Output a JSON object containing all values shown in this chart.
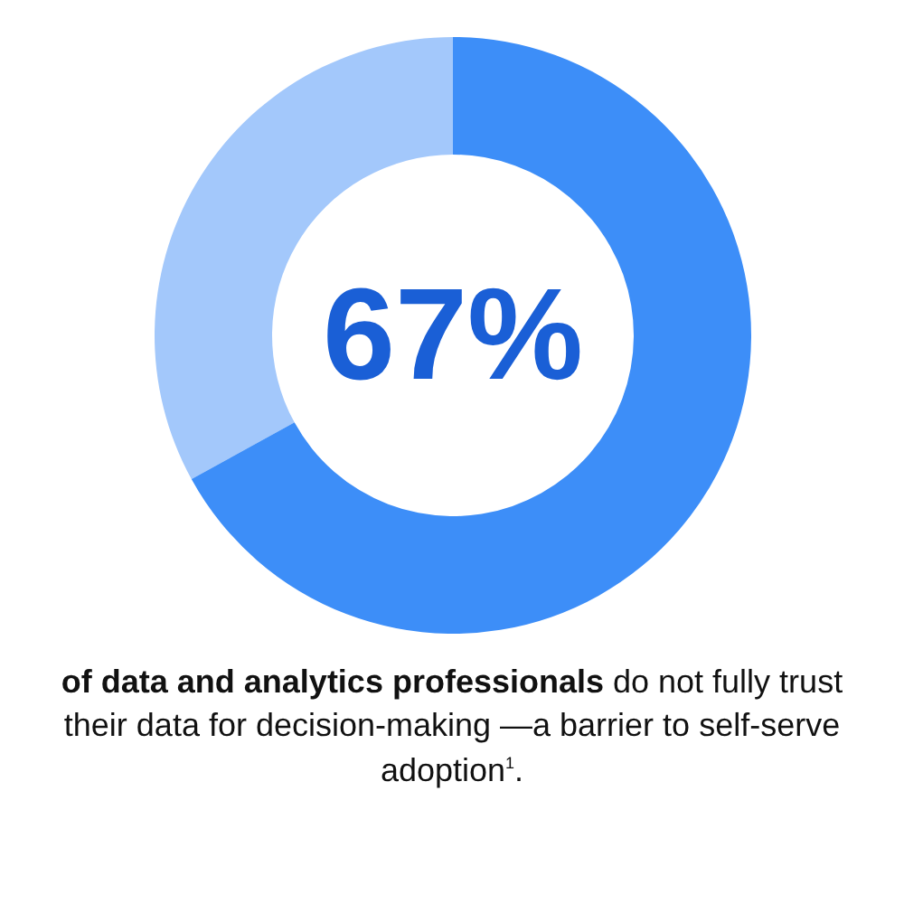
{
  "chart_data": {
    "type": "donut",
    "categories": [
      null,
      null
    ],
    "values": [
      67,
      33
    ],
    "colors": [
      "#3d8ef8",
      "#a3c8fb"
    ],
    "annotations": [
      "67%",
      "of data and analytics professionals",
      "do not fully trust their data for decision-making —a barrier to self-serve adoption$^{1}$."
    ]
  }
}
